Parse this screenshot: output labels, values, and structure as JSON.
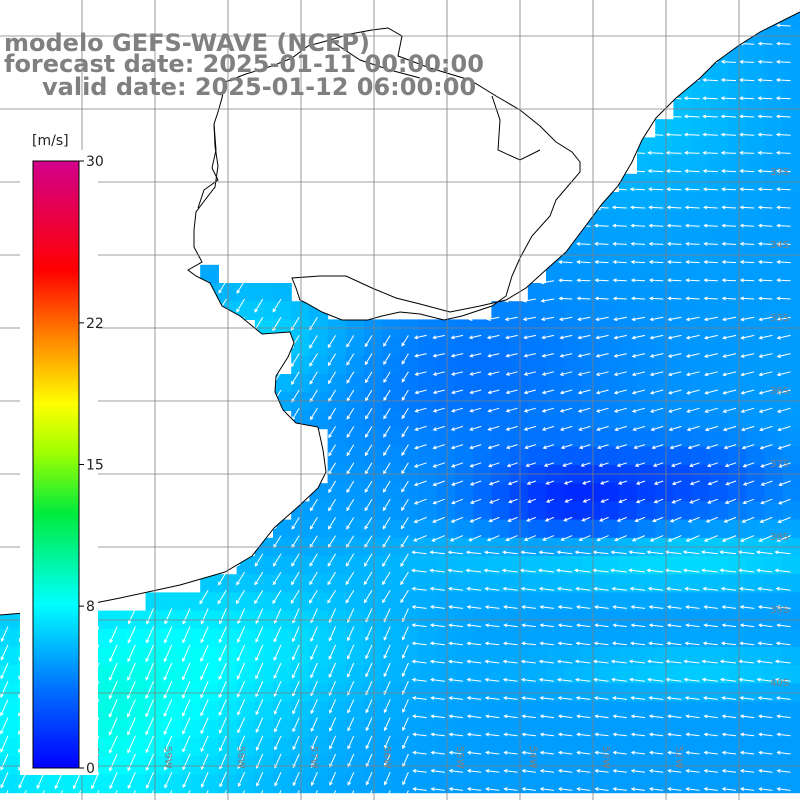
{
  "title": {
    "line1": "modelo GEFS-WAVE (NCEP)",
    "line2": "forecast date: 2025-01-11 00:00:00",
    "line3": "valid date: 2025-01-12 06:00:00"
  },
  "colorbar": {
    "units": "[m/s]",
    "min": 0,
    "max": 30,
    "ticks": [
      "30",
      "22",
      "15",
      "8",
      "0"
    ],
    "tick_values": [
      30,
      22,
      15,
      8,
      0
    ]
  },
  "grid": {
    "lat_labels": [
      "33S",
      "34S",
      "35S",
      "36S",
      "37S",
      "38S",
      "39S",
      "40S"
    ],
    "lon_labels": [
      "60W",
      "59W",
      "58W",
      "57W",
      "56W",
      "55W",
      "54W",
      "53W",
      "52W"
    ]
  },
  "colors": {
    "land": "#ffffff",
    "coast": "#000000",
    "grid": "#7f7f7f",
    "arrow": "#ffffff",
    "label": "#808080"
  },
  "field": {
    "variable": "wind speed and direction",
    "description_units": "m/s",
    "typical_open_ocean_speed": 5,
    "weakest_region_speed": 2,
    "strongest_region_speed": 11
  }
}
